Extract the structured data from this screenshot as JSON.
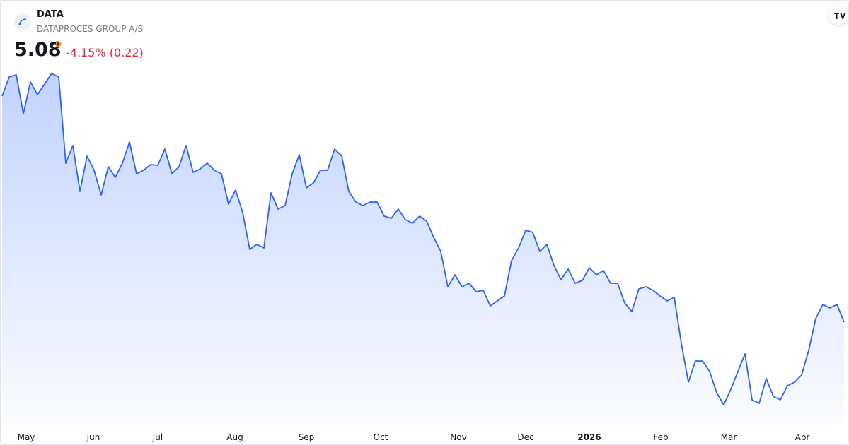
{
  "header": {
    "symbol": "DATA",
    "name": "DATAPROCES GROUP A/S",
    "price": "5.08",
    "interval": "D",
    "change": "-4.15% (0.22)"
  },
  "chart_data": {
    "type": "area",
    "color": "#2962ff",
    "values": [
      8.28,
      8.55,
      8.58,
      8.03,
      8.48,
      8.3,
      8.45,
      8.6,
      8.55,
      7.33,
      7.58,
      6.93,
      7.43,
      7.23,
      6.88,
      7.28,
      7.13,
      7.33,
      7.63,
      7.18,
      7.23,
      7.31,
      7.3,
      7.53,
      7.18,
      7.28,
      7.58,
      7.2,
      7.25,
      7.33,
      7.23,
      7.18,
      6.75,
      6.95,
      6.63,
      6.11,
      6.18,
      6.13,
      6.91,
      6.68,
      6.73,
      7.18,
      7.45,
      6.98,
      7.05,
      7.23,
      7.23,
      7.53,
      7.43,
      6.93,
      6.78,
      6.73,
      6.78,
      6.78,
      6.58,
      6.55,
      6.68,
      6.53,
      6.48,
      6.58,
      6.51,
      6.28,
      6.08,
      5.58,
      5.75,
      5.58,
      5.63,
      5.51,
      5.53,
      5.31,
      5.38,
      5.45,
      5.95,
      6.13,
      6.38,
      6.35,
      6.08,
      6.18,
      5.88,
      5.68,
      5.83,
      5.63,
      5.67,
      5.85,
      5.75,
      5.81,
      5.63,
      5.63,
      5.35,
      5.23,
      5.55,
      5.58,
      5.53,
      5.45,
      5.38,
      5.43,
      4.78,
      4.23,
      4.53,
      4.53,
      4.38,
      4.08,
      3.91,
      4.13,
      4.38,
      4.63,
      3.98,
      3.93,
      4.28,
      4.03,
      3.98,
      4.18,
      4.23,
      4.33,
      4.68,
      5.13,
      5.33,
      5.28,
      5.33,
      5.08
    ],
    "ylim": [
      3.6,
      8.7
    ],
    "xticks": [
      {
        "value": 3.4,
        "label": "May"
      },
      {
        "value": 12.9,
        "label": "Jun"
      },
      {
        "value": 22,
        "label": "Jul"
      },
      {
        "value": 32.9,
        "label": "Aug"
      },
      {
        "value": 43,
        "label": "Sep"
      },
      {
        "value": 53.5,
        "label": "Oct"
      },
      {
        "value": 64.5,
        "label": "Nov"
      },
      {
        "value": 74,
        "label": "Dec"
      },
      {
        "value": 83,
        "label": "2026"
      },
      {
        "value": 93.1,
        "label": "Feb"
      },
      {
        "value": 102.7,
        "label": "Mar"
      },
      {
        "value": 113.1,
        "label": "Apr"
      }
    ]
  }
}
